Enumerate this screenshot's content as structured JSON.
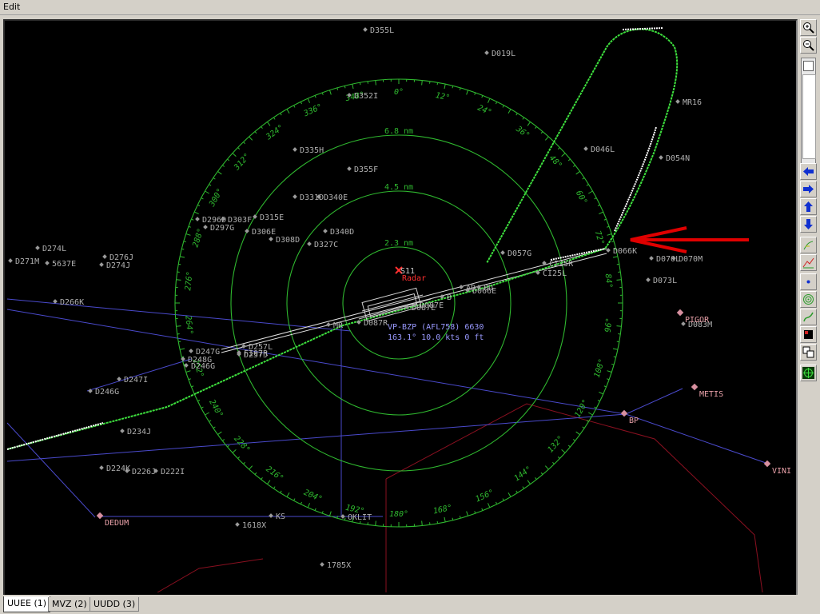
{
  "menu": {
    "edit_label": "Edit"
  },
  "radar": {
    "bearing_labels": [
      "0°",
      "12°",
      "24°",
      "36°",
      "48°",
      "60°",
      "72°",
      "84°",
      "96°",
      "108°",
      "120°",
      "132°",
      "144°",
      "156°",
      "168°",
      "180°",
      "192°",
      "204°",
      "216°",
      "228°",
      "240°",
      "252°",
      "264°",
      "276°",
      "288°",
      "300°",
      "312°",
      "324°",
      "336°",
      "348°"
    ],
    "range_rings": [
      "2.3 nm",
      "4.5 nm",
      "6.8 nm"
    ],
    "center_label": "Radar",
    "center_code": "S11",
    "aircraft": {
      "line1": "VP-BZP (AFL758) 6630",
      "line2": "163.1° 10.0 kts 0 ft"
    },
    "fixes": [
      {
        "name": "D355L"
      },
      {
        "name": "D019L"
      },
      {
        "name": "D352I"
      },
      {
        "name": "MR16"
      },
      {
        "name": "D335H"
      },
      {
        "name": "D046L"
      },
      {
        "name": "D054N"
      },
      {
        "name": "D355F"
      },
      {
        "name": "D331D"
      },
      {
        "name": "D340E"
      },
      {
        "name": "D296D"
      },
      {
        "name": "D303F"
      },
      {
        "name": "D315E"
      },
      {
        "name": "D297G"
      },
      {
        "name": "D306E"
      },
      {
        "name": "D340D"
      },
      {
        "name": "D308D"
      },
      {
        "name": "D327C"
      },
      {
        "name": "D057G"
      },
      {
        "name": "D066K"
      },
      {
        "name": "D070L"
      },
      {
        "name": "D070M"
      },
      {
        "name": "D073L"
      },
      {
        "name": "D274L"
      },
      {
        "name": "D276J"
      },
      {
        "name": "D271M"
      },
      {
        "name": "5637E"
      },
      {
        "name": "D274J"
      },
      {
        "name": "D266K"
      },
      {
        "name": "CI25R"
      },
      {
        "name": "CI25L"
      },
      {
        "name": "D066E"
      },
      {
        "name": "AD"
      },
      {
        "name": "BU"
      },
      {
        "name": "B"
      },
      {
        "name": "D247I"
      },
      {
        "name": "D246G"
      },
      {
        "name": "D234J"
      },
      {
        "name": "D226J"
      },
      {
        "name": "D222I"
      },
      {
        "name": "D224K"
      },
      {
        "name": "D083M"
      },
      {
        "name": "1785X"
      },
      {
        "name": "1618X"
      },
      {
        "name": "KS"
      },
      {
        "name": "OKLIT"
      },
      {
        "name": "D248G"
      },
      {
        "name": "MR"
      },
      {
        "name": "D247G"
      },
      {
        "name": "D246G"
      },
      {
        "name": "D257L"
      },
      {
        "name": "D257J"
      },
      {
        "name": "FI07R"
      },
      {
        "name": "D087R"
      },
      {
        "name": "D087E"
      },
      {
        "name": "D087E"
      }
    ],
    "waypoints": [
      {
        "name": "PIGOR"
      },
      {
        "name": "METIS"
      },
      {
        "name": "BP"
      },
      {
        "name": "VINI"
      },
      {
        "name": "DEDUM"
      }
    ]
  },
  "toolbar": {
    "buttons": [
      {
        "icon": "zoom-in-icon"
      },
      {
        "icon": "zoom-out-icon"
      },
      {
        "icon": "arrow-left-icon"
      },
      {
        "icon": "arrow-right-icon"
      },
      {
        "icon": "arrow-up-icon"
      },
      {
        "icon": "arrow-down-icon"
      },
      {
        "icon": "track-icon"
      },
      {
        "icon": "chart-icon"
      },
      {
        "icon": "center-dot-icon"
      },
      {
        "icon": "range-rings-icon"
      },
      {
        "icon": "path-icon"
      },
      {
        "icon": "color-box-icon"
      },
      {
        "icon": "window-icon"
      },
      {
        "icon": "radar-scope-icon"
      }
    ]
  },
  "tabs": [
    {
      "label": "UUEE (1)",
      "active": true
    },
    {
      "label": "MVZ (2)",
      "active": false
    },
    {
      "label": "UUDD (3)",
      "active": false
    }
  ],
  "colors": {
    "ring": "#2fb82f",
    "route": "#4a4acc",
    "fir_border": "#8a1020",
    "fix_label": "#b0b0b0",
    "waypoint_label": "#e8a0a8",
    "aircraft_label": "#9a9aff",
    "arrow": "#e00000"
  }
}
